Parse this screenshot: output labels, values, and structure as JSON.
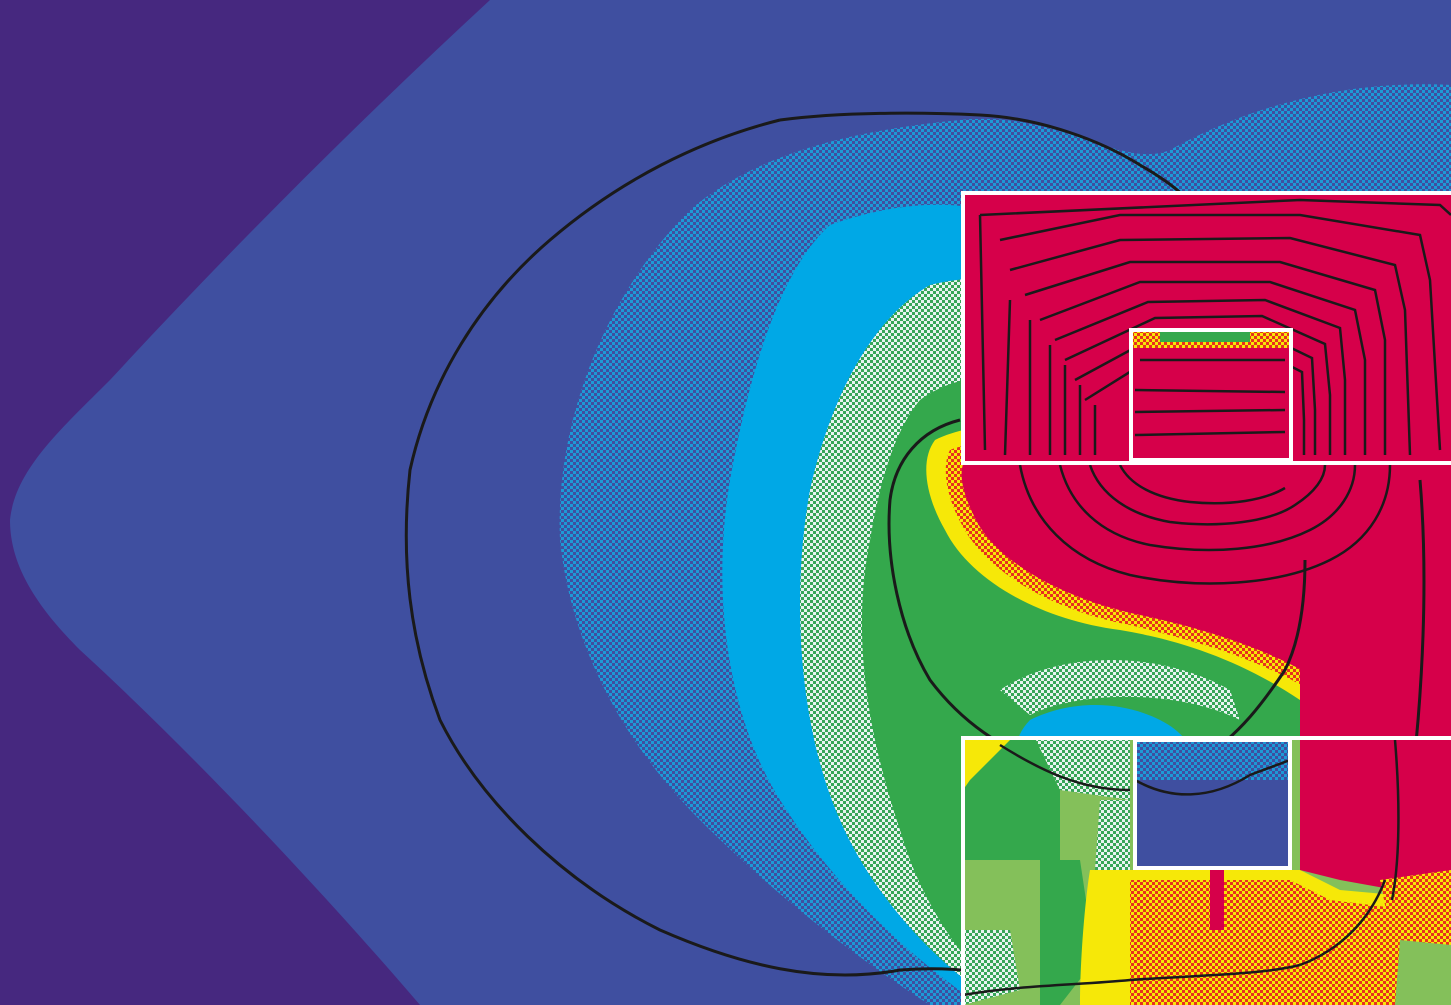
{
  "figure": {
    "title": "",
    "caption": "",
    "description_visible_text": "",
    "colors": {
      "outer_background": "#46287f",
      "deep_blue": "#3f4fa0",
      "blue_hatch": "#2a86c4",
      "cyan": "#00a8e6",
      "green_hatch_light": "#7fc78f",
      "green": "#34a84c",
      "light_green": "#84c05a",
      "yellow": "#f6e808",
      "red": "#d6004a",
      "contour": "#1a1a1a",
      "frame": "#ffffff"
    },
    "insets": [
      {
        "name": "upper-inset",
        "has_nested_box": true
      },
      {
        "name": "lower-inset",
        "has_nested_box": true
      }
    ],
    "contour_lines_count_upper_inset": 10
  }
}
